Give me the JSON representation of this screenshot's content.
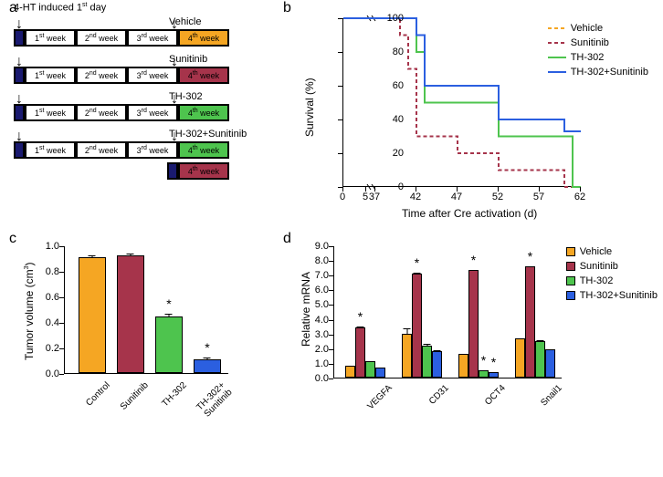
{
  "panels": {
    "a": "a",
    "b": "b",
    "c": "c",
    "d": "d"
  },
  "colors": {
    "vehicle": "#f5a623",
    "sunitinib": "#a6344b",
    "th302": "#4ec44e",
    "combo": "#2b5fe0",
    "start": "#1a1a70"
  },
  "a": {
    "top_label": "4-HT induced 1<span class='sup'>st</span> day",
    "weeks": [
      "1<span class='sup'>st</span> week",
      "2<span class='sup'>nd</span> week",
      "3<span class='sup'>rd</span> week",
      "4<span class='sup'>th</span> week"
    ],
    "groups": [
      "Vehicle",
      "Sunitinib",
      "TH-302",
      "TH-302+Sunitinib"
    ],
    "extra_week": "4<span class='sup'>th</span> week"
  },
  "b": {
    "ylabel": "Survival (%)",
    "xlabel": "Time after Cre activation (d)",
    "yticks": [
      0,
      20,
      40,
      60,
      80,
      100
    ],
    "xticks": [
      0,
      5,
      37,
      42,
      47,
      52,
      57,
      62
    ],
    "xbreak": [
      5,
      37
    ],
    "series": [
      {
        "name": "Vehicle",
        "color": "#f5a623",
        "dash": "4,3",
        "points": [
          [
            0,
            100
          ],
          [
            40,
            100
          ],
          [
            40,
            90
          ],
          [
            41,
            90
          ],
          [
            41,
            70
          ],
          [
            42,
            70
          ],
          [
            42,
            30
          ],
          [
            47,
            30
          ],
          [
            47,
            20
          ],
          [
            52,
            20
          ],
          [
            52,
            10
          ],
          [
            60,
            10
          ],
          [
            60,
            0
          ],
          [
            62,
            0
          ]
        ]
      },
      {
        "name": "Sunitinib",
        "color": "#a6344b",
        "dash": "4,3",
        "points": [
          [
            0,
            100
          ],
          [
            40,
            100
          ],
          [
            40,
            90
          ],
          [
            41,
            90
          ],
          [
            41,
            70
          ],
          [
            42,
            70
          ],
          [
            42,
            30
          ],
          [
            47,
            30
          ],
          [
            47,
            20
          ],
          [
            52,
            20
          ],
          [
            52,
            10
          ],
          [
            60,
            10
          ],
          [
            60,
            0
          ],
          [
            62,
            0
          ]
        ]
      },
      {
        "name": "TH-302",
        "color": "#4ec44e",
        "dash": "",
        "points": [
          [
            0,
            100
          ],
          [
            42,
            100
          ],
          [
            42,
            80
          ],
          [
            43,
            80
          ],
          [
            43,
            50
          ],
          [
            52,
            50
          ],
          [
            52,
            30
          ],
          [
            61,
            30
          ],
          [
            61,
            0
          ],
          [
            62,
            0
          ]
        ]
      },
      {
        "name": "TH-302+Sunitinib",
        "color": "#2b5fe0",
        "dash": "",
        "points": [
          [
            0,
            100
          ],
          [
            42,
            100
          ],
          [
            42,
            90
          ],
          [
            43,
            90
          ],
          [
            43,
            60
          ],
          [
            52,
            60
          ],
          [
            52,
            40
          ],
          [
            60,
            40
          ],
          [
            60,
            33
          ],
          [
            62,
            33
          ]
        ]
      }
    ]
  },
  "c": {
    "ylabel": "Tumor volume (cm<span class='sup'>3</span>)",
    "yticks": [
      "0.0",
      "0.2",
      "0.4",
      "0.6",
      "0.8",
      "1.0"
    ],
    "ymax": 1.0,
    "categories": [
      "Control",
      "Sunitinib",
      "TH-302",
      "TH-302+<br>Sunitinib"
    ],
    "values": [
      0.91,
      0.92,
      0.44,
      0.11
    ],
    "errors": [
      0.02,
      0.02,
      0.03,
      0.02
    ],
    "stars": [
      false,
      false,
      true,
      true
    ],
    "colors": [
      "#f5a623",
      "#a6344b",
      "#4ec44e",
      "#2b5fe0"
    ]
  },
  "d": {
    "ylabel": "Relative mRNA",
    "yticks": [
      "0.0",
      "1.0",
      "2.0",
      "3.0",
      "4.0",
      "5.0",
      "6.0",
      "7.0",
      "8.0",
      "9.0"
    ],
    "ymax": 9.0,
    "categories": [
      "VEGFA",
      "CD31",
      "OCT4",
      "Snail1"
    ],
    "groups": [
      "Vehicle",
      "Sunitinib",
      "TH-302",
      "TH-302+Sunitinib"
    ],
    "colors": [
      "#f5a623",
      "#a6344b",
      "#4ec44e",
      "#2b5fe0"
    ],
    "values": [
      [
        0.8,
        3.4,
        1.1,
        0.7
      ],
      [
        3.0,
        7.1,
        2.2,
        1.8
      ],
      [
        1.6,
        7.3,
        0.5,
        0.4
      ],
      [
        2.7,
        7.6,
        2.5,
        1.9
      ]
    ],
    "errors": [
      [
        0.05,
        0.15,
        0.1,
        0.05
      ],
      [
        0.4,
        0.1,
        0.15,
        0.1
      ],
      [
        0.1,
        0.1,
        0.05,
        0.05
      ],
      [
        0.05,
        0.05,
        0.1,
        0.1
      ]
    ],
    "stars": [
      [
        false,
        true,
        false,
        false
      ],
      [
        false,
        true,
        false,
        false
      ],
      [
        false,
        true,
        true,
        true
      ],
      [
        false,
        true,
        false,
        false
      ]
    ]
  }
}
